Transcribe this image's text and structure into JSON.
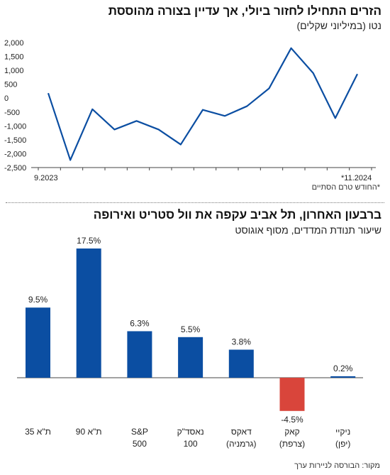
{
  "chart_data": [
    {
      "type": "line",
      "title": "הזרים התחילו לחזור ביולי, אך עדיין בצורה מהוססת",
      "subtitle": "נטו (במיליוני שקלים)",
      "x_start_label": "9.2023",
      "x_end_label": "*11.2024",
      "footnote": "*החודש טרם הסתיים",
      "ylim": [
        -2500,
        2000
      ],
      "yticks": [
        "2,000",
        "1,500",
        "1,000",
        "500",
        "0",
        "-500",
        "-1,000",
        "-1,500",
        "-2,000",
        "-2,500"
      ],
      "ytick_values": [
        2000,
        1500,
        1000,
        500,
        0,
        -500,
        -1000,
        -1500,
        -2000,
        -2500
      ],
      "x": [
        "9.2023",
        "10.2023",
        "11.2023",
        "12.2023",
        "1.2024",
        "2.2024",
        "3.2024",
        "4.2024",
        "5.2024",
        "6.2024",
        "7.2024",
        "8.2024",
        "9.2024",
        "10.2024",
        "11.2024"
      ],
      "values": [
        180,
        -2230,
        -400,
        -1130,
        -820,
        -1130,
        -1670,
        -420,
        -640,
        -290,
        350,
        1800,
        900,
        -720,
        870
      ],
      "color": "#0b4ea2",
      "grid": false
    },
    {
      "type": "bar",
      "title": "ברבעון האחרון, תל אביב עקפה את וול סטריט ואירופה",
      "subtitle": "שיעור תנודת המדדים, מסוף אוגוסט",
      "categories": [
        [
          "ת\"א 35"
        ],
        [
          "ת\"א 90"
        ],
        [
          "S&P",
          "500"
        ],
        [
          "נאסד\"ק",
          "100"
        ],
        [
          "דאקס",
          "(גרמניה)"
        ],
        [
          "קאק",
          "(צרפת)"
        ],
        [
          "ניקיי",
          "(יפן)"
        ]
      ],
      "values": [
        9.5,
        17.5,
        6.3,
        5.5,
        3.8,
        -4.5,
        0.2
      ],
      "value_labels": [
        "9.5%",
        "17.5%",
        "6.3%",
        "5.5%",
        "3.8%",
        "-4.5%",
        "0.2%"
      ],
      "colors": {
        "positive": "#0b4ea2",
        "negative": "#d9453b"
      },
      "source": "מקור: הבורסה לניירות ערך"
    }
  ]
}
